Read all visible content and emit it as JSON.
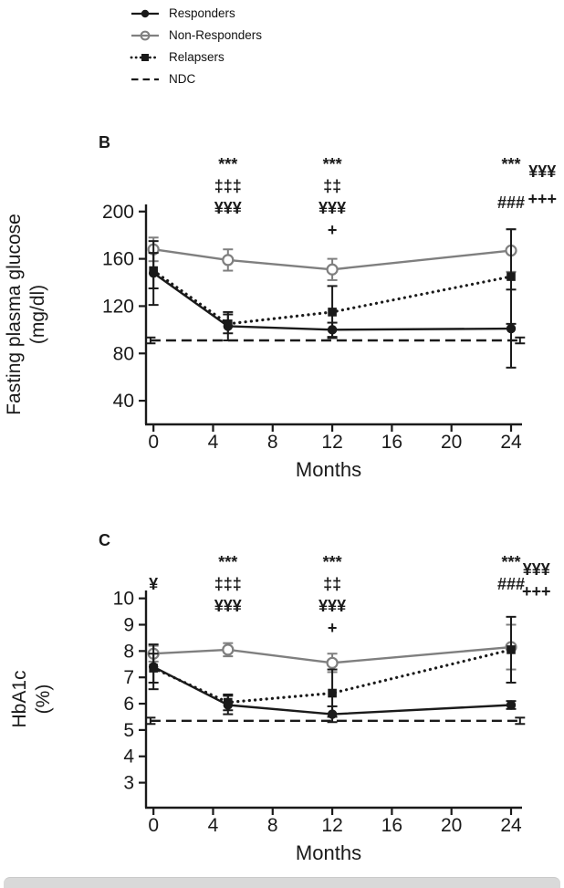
{
  "colors": {
    "ink": "#1a1a1a",
    "gray": "#7f7f7f",
    "background": "#ffffff",
    "bottom_strip": "#d9d9d9"
  },
  "legend": {
    "items": [
      {
        "label": "Responders",
        "marker": "circle",
        "dash": "solid",
        "color": "#1a1a1a"
      },
      {
        "label": "Non-Responders",
        "marker": "circle-open",
        "dash": "solid",
        "color": "#7f7f7f"
      },
      {
        "label": "Relapsers",
        "marker": "square",
        "dash": "dotted",
        "color": "#1a1a1a"
      },
      {
        "label": "NDC",
        "marker": "none",
        "dash": "dashed",
        "color": "#1a1a1a"
      }
    ]
  },
  "chart_data": [
    {
      "type": "line",
      "panel_label": "B",
      "title": "",
      "xlabel": "Months",
      "ylabel_lines": [
        "Fasting plasma glucose",
        "(mg/dl)"
      ],
      "x": [
        0,
        5,
        12,
        24
      ],
      "xticks": [
        0,
        4,
        8,
        12,
        16,
        20,
        24
      ],
      "xlim": [
        -0.5,
        24
      ],
      "yticks": [
        40,
        80,
        120,
        160,
        200
      ],
      "ylim": [
        20,
        206
      ],
      "grid": false,
      "legend_position": "top-left-of-figure",
      "series": [
        {
          "name": "NDC",
          "values": [
            91,
            91,
            91,
            91
          ],
          "errors": [
            2.5,
            0,
            0,
            2.5
          ],
          "x": [
            -0.2,
            8,
            16,
            24.6
          ],
          "color": "#1a1a1a",
          "marker": "none",
          "dash": "dashed"
        },
        {
          "name": "Non-Responders",
          "values": [
            168,
            159,
            151,
            167
          ],
          "errors": [
            10,
            9,
            9,
            18
          ],
          "color": "#7f7f7f",
          "marker": "circle-open",
          "dash": "solid"
        },
        {
          "name": "Relapsers",
          "values": [
            150,
            105,
            115,
            145
          ],
          "errors": [
            15,
            8,
            22,
            40
          ],
          "color": "#1a1a1a",
          "marker": "square",
          "dash": "dotted"
        },
        {
          "name": "Responders",
          "values": [
            148,
            103,
            100,
            101
          ],
          "errors": [
            27,
            12,
            6,
            33
          ],
          "color": "#1a1a1a",
          "marker": "circle",
          "dash": "solid"
        }
      ],
      "annotations": [
        {
          "x": 5,
          "lines": [
            "***",
            "‡‡‡",
            "¥¥¥"
          ]
        },
        {
          "x": 12,
          "lines": [
            "***",
            "‡‡",
            "¥¥¥",
            "+"
          ]
        },
        {
          "x": 24,
          "lines": [
            "***"
          ]
        },
        {
          "x": 24,
          "dy": 42,
          "lines": [
            "###"
          ]
        },
        {
          "x": 26.1,
          "dy": 8,
          "lines": [
            "¥¥¥"
          ]
        },
        {
          "x": 26.1,
          "dy": 38,
          "lines": [
            "+++"
          ]
        }
      ]
    },
    {
      "type": "line",
      "panel_label": "C",
      "title": "",
      "xlabel": "Months",
      "ylabel_lines": [
        "HbA1c",
        "(%)"
      ],
      "x": [
        0,
        5,
        12,
        24
      ],
      "xticks": [
        0,
        4,
        8,
        12,
        16,
        20,
        24
      ],
      "xlim": [
        -0.5,
        24
      ],
      "yticks": [
        3,
        4,
        5,
        6,
        7,
        8,
        9,
        10
      ],
      "ylim": [
        2.05,
        10.3
      ],
      "grid": false,
      "legend_position": "top-left-of-figure",
      "series": [
        {
          "name": "NDC",
          "values": [
            5.35,
            5.35,
            5.35,
            5.35
          ],
          "errors": [
            0.12,
            0,
            0,
            0.12
          ],
          "x": [
            -0.2,
            8,
            16,
            24.6
          ],
          "color": "#1a1a1a",
          "marker": "none",
          "dash": "dashed"
        },
        {
          "name": "Non-Responders",
          "values": [
            7.9,
            8.05,
            7.55,
            8.15
          ],
          "errors": [
            0.3,
            0.25,
            0.35,
            0.85
          ],
          "color": "#7f7f7f",
          "marker": "circle-open",
          "dash": "solid"
        },
        {
          "name": "Relapsers",
          "values": [
            7.35,
            6.05,
            6.4,
            8.05
          ],
          "errors": [
            0.55,
            0.3,
            0.9,
            1.25
          ],
          "color": "#1a1a1a",
          "marker": "square",
          "dash": "dotted"
        },
        {
          "name": "Responders",
          "values": [
            7.4,
            5.95,
            5.6,
            5.95
          ],
          "errors": [
            0.85,
            0.35,
            0.3,
            0.15
          ],
          "color": "#1a1a1a",
          "marker": "circle",
          "dash": "solid"
        }
      ],
      "annotations": [
        {
          "x": 0,
          "dy": 24,
          "lines": [
            "¥"
          ]
        },
        {
          "x": 5,
          "lines": [
            "***",
            "‡‡‡",
            "¥¥¥"
          ]
        },
        {
          "x": 12,
          "lines": [
            "***",
            "‡‡",
            "¥¥¥",
            "+"
          ]
        },
        {
          "x": 24,
          "lines": [
            "***",
            "###"
          ]
        },
        {
          "x": 25.7,
          "dy": 8,
          "lines": [
            "¥¥¥",
            "+++"
          ]
        }
      ]
    }
  ]
}
